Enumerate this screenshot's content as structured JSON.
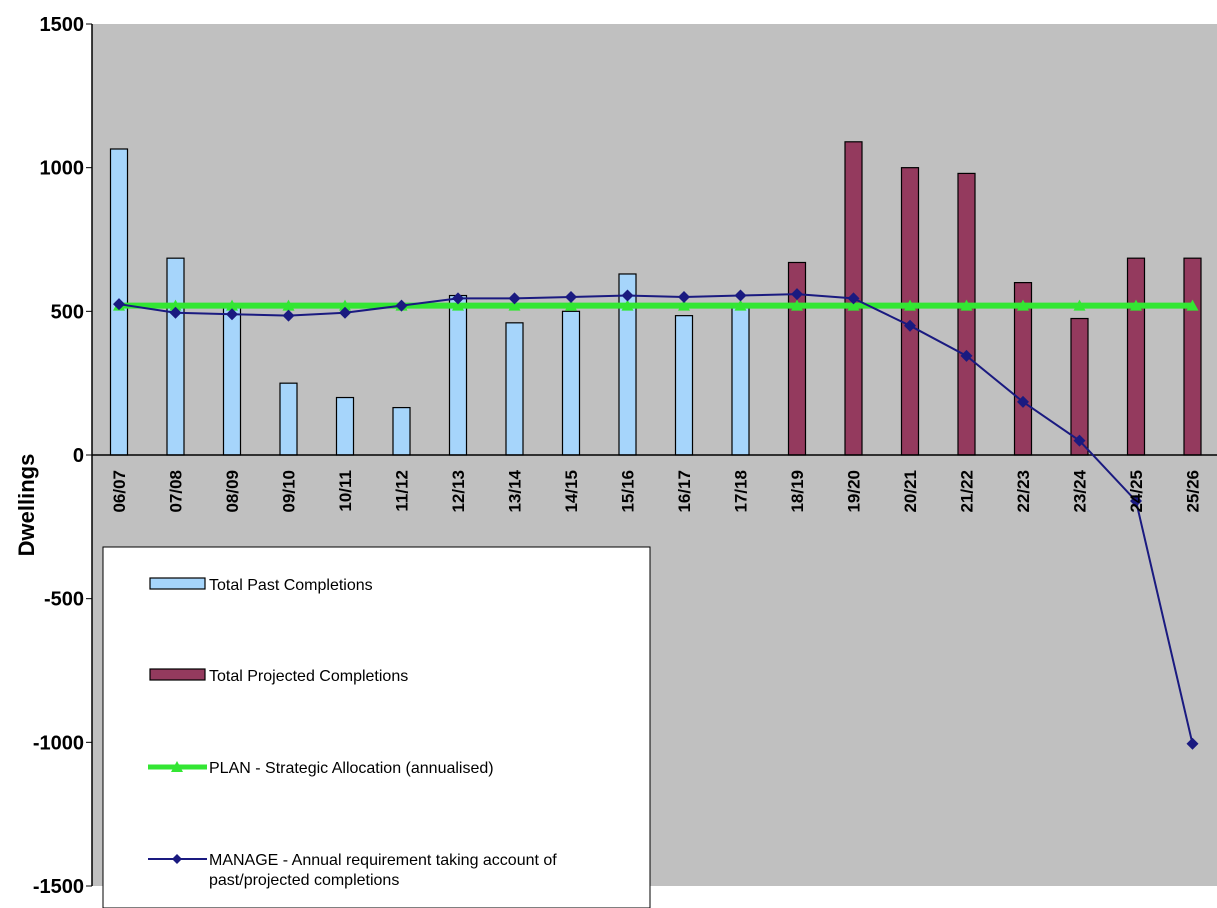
{
  "chart_data": {
    "type": "bar",
    "ylabel": "Dwellings",
    "xlabel": "",
    "title": "",
    "ylim": [
      -1500,
      1500
    ],
    "yticks": [
      1500,
      1000,
      500,
      0,
      -500,
      -1000,
      -1500
    ],
    "categories": [
      "06/07",
      "07/08",
      "08/09",
      "09/10",
      "10/11",
      "11/12",
      "12/13",
      "13/14",
      "14/15",
      "15/16",
      "16/17",
      "17/18",
      "18/19",
      "19/20",
      "20/21",
      "21/22",
      "22/23",
      "23/24",
      "24/25",
      "25/26"
    ],
    "grid": false,
    "legend_position": "bottom-left",
    "series": [
      {
        "name": "Total Past Completions",
        "kind": "bar",
        "color": "#a6d5fb",
        "values": [
          1065,
          685,
          515,
          250,
          200,
          165,
          555,
          460,
          500,
          630,
          485,
          515,
          null,
          null,
          null,
          null,
          null,
          null,
          null,
          null
        ]
      },
      {
        "name": "Total Projected Completions",
        "kind": "bar",
        "color": "#943a5e",
        "values": [
          null,
          null,
          null,
          null,
          null,
          null,
          null,
          null,
          null,
          null,
          null,
          null,
          670,
          1090,
          1000,
          980,
          600,
          475,
          685,
          685
        ]
      },
      {
        "name": "PLAN - Strategic Allocation (annualised)",
        "kind": "line",
        "color": "#33e633",
        "values": [
          520,
          520,
          520,
          520,
          520,
          520,
          520,
          520,
          520,
          520,
          520,
          520,
          520,
          520,
          520,
          520,
          520,
          520,
          520,
          520
        ]
      },
      {
        "name": "MANAGE - Annual requirement taking account of past/projected completions",
        "kind": "line",
        "color": "#1a1a80",
        "values": [
          525,
          495,
          490,
          485,
          495,
          520,
          545,
          545,
          550,
          555,
          550,
          555,
          560,
          545,
          450,
          345,
          185,
          50,
          -160,
          -1005
        ]
      }
    ]
  }
}
